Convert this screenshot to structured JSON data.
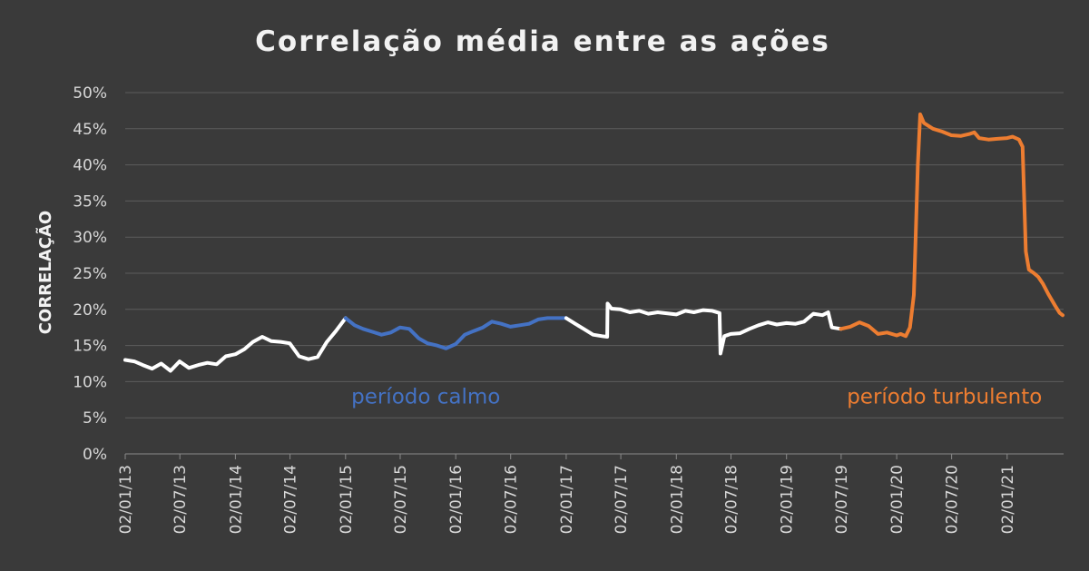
{
  "chart_data": {
    "type": "line",
    "title": "Correlação média entre as ações",
    "ylabel": "CORRELAÇÃO",
    "xlabel": "",
    "ylim": [
      0,
      50
    ],
    "y_ticks": [
      "0%",
      "5%",
      "10%",
      "15%",
      "20%",
      "25%",
      "30%",
      "35%",
      "40%",
      "45%",
      "50%"
    ],
    "x_ticks": [
      "02/01/13",
      "02/07/13",
      "02/01/14",
      "02/07/14",
      "02/01/15",
      "02/07/15",
      "02/01/16",
      "02/07/16",
      "02/01/17",
      "02/07/17",
      "02/01/18",
      "02/07/18",
      "02/01/19",
      "02/07/19",
      "02/01/20",
      "02/07/20",
      "02/01/21"
    ],
    "grid": true,
    "legend": "none",
    "colors": {
      "normal": "#ffffff",
      "calm": "#4472c4",
      "turbulent": "#ed7d31"
    },
    "series": [
      {
        "segment": "normal",
        "color": "#ffffff",
        "points": [
          [
            "2013-01-02",
            13.0
          ],
          [
            "2013-02-01",
            12.8
          ],
          [
            "2013-03-01",
            12.3
          ],
          [
            "2013-04-01",
            11.8
          ],
          [
            "2013-05-01",
            12.5
          ],
          [
            "2013-06-01",
            11.5
          ],
          [
            "2013-07-01",
            12.8
          ],
          [
            "2013-08-01",
            11.9
          ],
          [
            "2013-09-01",
            12.3
          ],
          [
            "2013-10-01",
            12.6
          ],
          [
            "2013-11-01",
            12.4
          ],
          [
            "2013-12-01",
            13.5
          ],
          [
            "2014-01-02",
            13.8
          ],
          [
            "2014-02-01",
            14.5
          ],
          [
            "2014-03-01",
            15.5
          ],
          [
            "2014-04-01",
            16.2
          ],
          [
            "2014-05-01",
            15.6
          ],
          [
            "2014-06-01",
            15.5
          ],
          [
            "2014-07-01",
            15.3
          ],
          [
            "2014-08-01",
            13.5
          ],
          [
            "2014-09-01",
            13.1
          ],
          [
            "2014-10-01",
            13.4
          ],
          [
            "2014-11-01",
            15.5
          ],
          [
            "2014-12-01",
            17.0
          ],
          [
            "2015-01-02",
            18.8
          ]
        ]
      },
      {
        "segment": "calm",
        "color": "#4472c4",
        "points": [
          [
            "2015-01-02",
            18.8
          ],
          [
            "2015-02-01",
            17.8
          ],
          [
            "2015-03-01",
            17.3
          ],
          [
            "2015-04-01",
            16.9
          ],
          [
            "2015-05-01",
            16.5
          ],
          [
            "2015-06-01",
            16.8
          ],
          [
            "2015-07-01",
            17.5
          ],
          [
            "2015-08-01",
            17.3
          ],
          [
            "2015-09-01",
            16.0
          ],
          [
            "2015-10-01",
            15.3
          ],
          [
            "2015-11-01",
            15.0
          ],
          [
            "2015-12-01",
            14.6
          ],
          [
            "2016-01-02",
            15.2
          ],
          [
            "2016-02-01",
            16.5
          ],
          [
            "2016-03-01",
            17.0
          ],
          [
            "2016-04-01",
            17.5
          ],
          [
            "2016-05-01",
            18.3
          ],
          [
            "2016-06-01",
            18.0
          ],
          [
            "2016-07-01",
            17.6
          ],
          [
            "2016-08-01",
            17.8
          ],
          [
            "2016-09-01",
            18.0
          ],
          [
            "2016-10-01",
            18.6
          ],
          [
            "2016-11-01",
            18.8
          ],
          [
            "2017-01-02",
            18.8
          ]
        ]
      },
      {
        "segment": "normal",
        "color": "#ffffff",
        "points": [
          [
            "2017-01-02",
            18.8
          ],
          [
            "2017-02-01",
            18.0
          ],
          [
            "2017-03-01",
            17.3
          ],
          [
            "2017-04-01",
            16.5
          ],
          [
            "2017-05-01",
            16.3
          ],
          [
            "2017-05-18",
            16.2
          ],
          [
            "2017-05-19",
            20.8
          ],
          [
            "2017-06-01",
            20.1
          ],
          [
            "2017-07-01",
            20.0
          ],
          [
            "2017-08-01",
            19.6
          ],
          [
            "2017-09-01",
            19.8
          ],
          [
            "2017-10-01",
            19.4
          ],
          [
            "2017-11-01",
            19.6
          ],
          [
            "2018-01-02",
            19.3
          ],
          [
            "2018-02-01",
            19.8
          ],
          [
            "2018-03-01",
            19.6
          ],
          [
            "2018-04-01",
            19.9
          ],
          [
            "2018-05-01",
            19.8
          ],
          [
            "2018-05-25",
            19.5
          ],
          [
            "2018-05-28",
            13.9
          ],
          [
            "2018-06-10",
            16.3
          ],
          [
            "2018-07-01",
            16.6
          ],
          [
            "2018-08-01",
            16.7
          ],
          [
            "2018-09-01",
            17.3
          ],
          [
            "2018-10-01",
            17.8
          ],
          [
            "2018-11-01",
            18.2
          ],
          [
            "2018-12-01",
            17.9
          ],
          [
            "2019-01-02",
            18.1
          ],
          [
            "2019-02-01",
            18.0
          ],
          [
            "2019-03-01",
            18.3
          ],
          [
            "2019-04-01",
            19.4
          ],
          [
            "2019-05-01",
            19.2
          ],
          [
            "2019-05-20",
            19.6
          ],
          [
            "2019-06-01",
            17.5
          ],
          [
            "2019-07-01",
            17.3
          ]
        ]
      },
      {
        "segment": "turbulent",
        "color": "#ed7d31",
        "points": [
          [
            "2019-07-01",
            17.3
          ],
          [
            "2019-08-01",
            17.6
          ],
          [
            "2019-09-01",
            18.2
          ],
          [
            "2019-10-01",
            17.7
          ],
          [
            "2019-11-01",
            16.6
          ],
          [
            "2019-12-01",
            16.8
          ],
          [
            "2020-01-02",
            16.4
          ],
          [
            "2020-01-15",
            16.6
          ],
          [
            "2020-02-01",
            16.3
          ],
          [
            "2020-02-15",
            17.5
          ],
          [
            "2020-02-28",
            22.0
          ],
          [
            "2020-03-05",
            30.0
          ],
          [
            "2020-03-12",
            40.0
          ],
          [
            "2020-03-20",
            47.0
          ],
          [
            "2020-04-01",
            45.8
          ],
          [
            "2020-05-01",
            45.0
          ],
          [
            "2020-06-01",
            44.6
          ],
          [
            "2020-07-01",
            44.1
          ],
          [
            "2020-08-01",
            44.0
          ],
          [
            "2020-09-01",
            44.3
          ],
          [
            "2020-09-15",
            44.5
          ],
          [
            "2020-10-01",
            43.7
          ],
          [
            "2020-11-01",
            43.5
          ],
          [
            "2020-12-01",
            43.6
          ],
          [
            "2021-01-02",
            43.7
          ],
          [
            "2021-01-20",
            43.9
          ],
          [
            "2021-02-10",
            43.5
          ],
          [
            "2021-02-22",
            42.5
          ],
          [
            "2021-03-05",
            28.0
          ],
          [
            "2021-03-15",
            25.5
          ],
          [
            "2021-04-01",
            25.0
          ],
          [
            "2021-04-15",
            24.5
          ],
          [
            "2021-05-01",
            23.5
          ],
          [
            "2021-05-20",
            22.0
          ],
          [
            "2021-06-10",
            20.5
          ],
          [
            "2021-06-25",
            19.5
          ],
          [
            "2021-07-05",
            19.2
          ]
        ]
      }
    ],
    "annotations": [
      {
        "text": "período calmo",
        "color": "#4472c4",
        "x": "2015-01-15",
        "y": 7.0
      },
      {
        "text": "período turbulento",
        "color": "#ed7d31",
        "x": "2019-07-15",
        "y": 7.0
      }
    ]
  }
}
